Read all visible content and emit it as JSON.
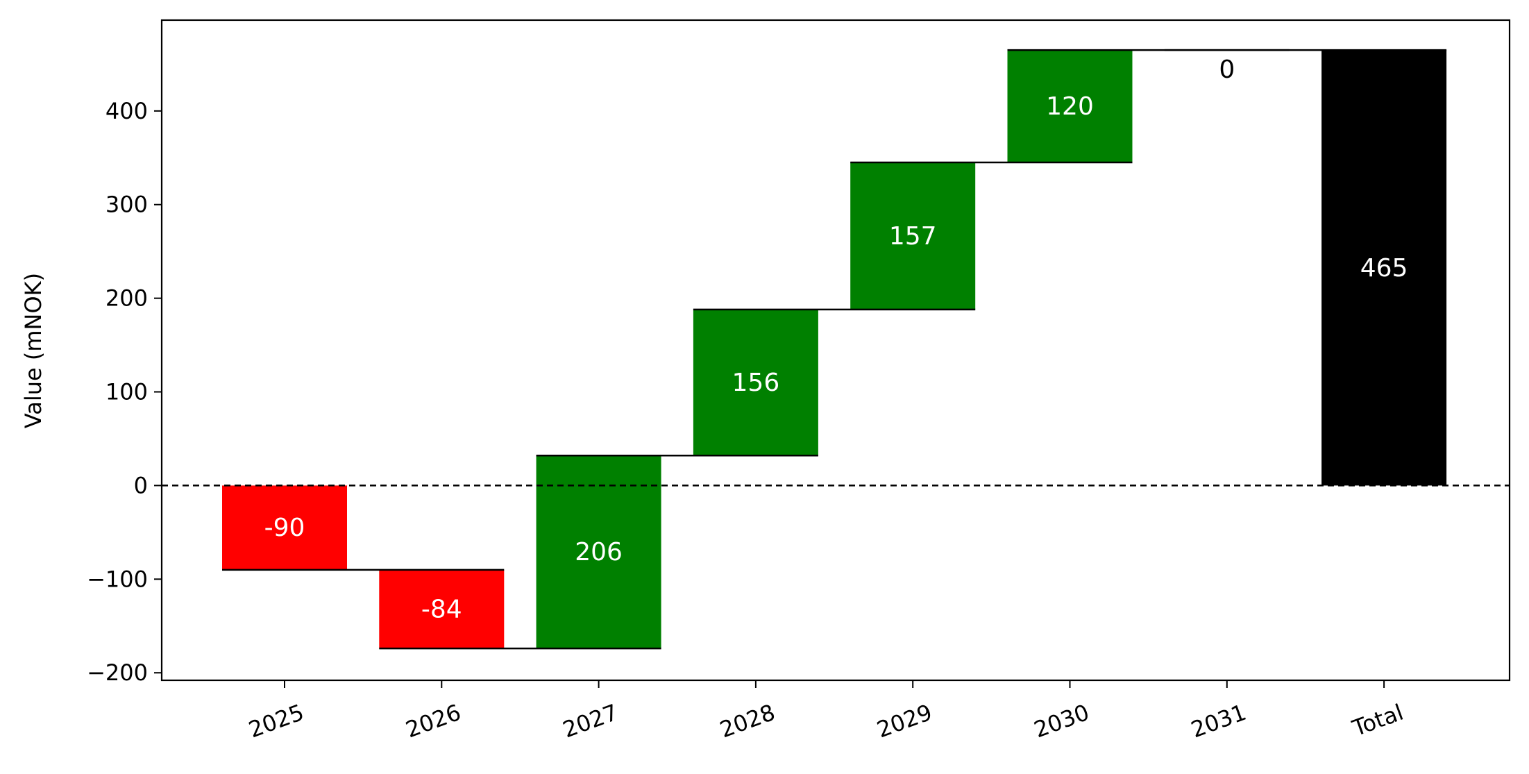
{
  "chart_data": {
    "type": "waterfall",
    "categories": [
      "2025",
      "2026",
      "2027",
      "2028",
      "2029",
      "2030",
      "2031",
      "Total"
    ],
    "values": [
      -90,
      -84,
      206,
      156,
      157,
      120,
      0,
      465
    ],
    "labels": [
      "-90",
      "-84",
      "206",
      "156",
      "157",
      "120",
      "0",
      "465"
    ],
    "total_index": 7,
    "title": "",
    "xlabel": "",
    "ylabel": "Value (mNOK)",
    "ylim": [
      -208,
      497
    ],
    "yticks": [
      -200,
      -100,
      0,
      100,
      200,
      300,
      400
    ],
    "ytick_labels": [
      "−200",
      "−100",
      "0",
      "100",
      "200",
      "300",
      "400"
    ],
    "zero_line": "dashed",
    "grid": false,
    "colors": {
      "positive": "#008000",
      "negative": "#ff0000",
      "total": "#000000",
      "connector": "#000000",
      "label_on_bar": "#ffffff",
      "label_zero": "#000000"
    }
  }
}
